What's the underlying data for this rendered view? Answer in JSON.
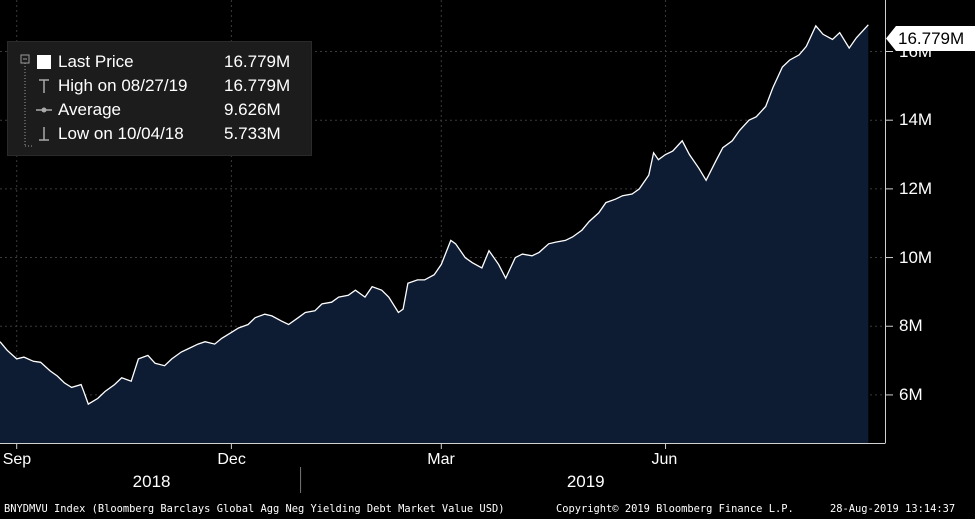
{
  "chart_data": {
    "type": "area",
    "title": "",
    "xlabel": "",
    "ylabel": "",
    "series": [
      {
        "points": [
          [
            "2018-08-28",
            7.55
          ],
          [
            "2018-08-31",
            7.3
          ],
          [
            "2018-09-04",
            7.05
          ],
          [
            "2018-09-07",
            7.1
          ],
          [
            "2018-09-11",
            6.98
          ],
          [
            "2018-09-14",
            6.95
          ],
          [
            "2018-09-18",
            6.7
          ],
          [
            "2018-09-21",
            6.55
          ],
          [
            "2018-09-24",
            6.35
          ],
          [
            "2018-09-27",
            6.22
          ],
          [
            "2018-10-01",
            6.3
          ],
          [
            "2018-10-02",
            6.12
          ],
          [
            "2018-10-04",
            5.733
          ],
          [
            "2018-10-08",
            5.9
          ],
          [
            "2018-10-11",
            6.1
          ],
          [
            "2018-10-15",
            6.3
          ],
          [
            "2018-10-18",
            6.5
          ],
          [
            "2018-10-22",
            6.4
          ],
          [
            "2018-10-25",
            7.05
          ],
          [
            "2018-10-29",
            7.15
          ],
          [
            "2018-11-01",
            6.92
          ],
          [
            "2018-11-05",
            6.85
          ],
          [
            "2018-11-08",
            7.05
          ],
          [
            "2018-11-12",
            7.25
          ],
          [
            "2018-11-15",
            7.35
          ],
          [
            "2018-11-19",
            7.48
          ],
          [
            "2018-11-22",
            7.55
          ],
          [
            "2018-11-26",
            7.48
          ],
          [
            "2018-11-29",
            7.65
          ],
          [
            "2018-12-03",
            7.82
          ],
          [
            "2018-12-06",
            7.95
          ],
          [
            "2018-12-10",
            8.05
          ],
          [
            "2018-12-13",
            8.25
          ],
          [
            "2018-12-17",
            8.35
          ],
          [
            "2018-12-20",
            8.3
          ],
          [
            "2018-12-24",
            8.15
          ],
          [
            "2018-12-27",
            8.05
          ],
          [
            "2018-12-31",
            8.25
          ],
          [
            "2019-01-03",
            8.4
          ],
          [
            "2019-01-07",
            8.45
          ],
          [
            "2019-01-10",
            8.65
          ],
          [
            "2019-01-14",
            8.7
          ],
          [
            "2019-01-17",
            8.85
          ],
          [
            "2019-01-21",
            8.9
          ],
          [
            "2019-01-24",
            9.05
          ],
          [
            "2019-01-28",
            8.85
          ],
          [
            "2019-01-31",
            9.15
          ],
          [
            "2019-02-04",
            9.05
          ],
          [
            "2019-02-07",
            8.85
          ],
          [
            "2019-02-11",
            8.4
          ],
          [
            "2019-02-13",
            8.5
          ],
          [
            "2019-02-15",
            9.25
          ],
          [
            "2019-02-19",
            9.35
          ],
          [
            "2019-02-22",
            9.35
          ],
          [
            "2019-02-26",
            9.5
          ],
          [
            "2019-03-01",
            9.8
          ],
          [
            "2019-03-05",
            10.5
          ],
          [
            "2019-03-07",
            10.4
          ],
          [
            "2019-03-11",
            10.0
          ],
          [
            "2019-03-14",
            9.85
          ],
          [
            "2019-03-18",
            9.7
          ],
          [
            "2019-03-21",
            10.2
          ],
          [
            "2019-03-25",
            9.8
          ],
          [
            "2019-03-28",
            9.4
          ],
          [
            "2019-04-01",
            10.0
          ],
          [
            "2019-04-04",
            10.1
          ],
          [
            "2019-04-08",
            10.05
          ],
          [
            "2019-04-11",
            10.15
          ],
          [
            "2019-04-15",
            10.4
          ],
          [
            "2019-04-18",
            10.45
          ],
          [
            "2019-04-22",
            10.5
          ],
          [
            "2019-04-25",
            10.6
          ],
          [
            "2019-04-29",
            10.8
          ],
          [
            "2019-05-02",
            11.05
          ],
          [
            "2019-05-06",
            11.3
          ],
          [
            "2019-05-09",
            11.6
          ],
          [
            "2019-05-13",
            11.7
          ],
          [
            "2019-05-16",
            11.8
          ],
          [
            "2019-05-20",
            11.85
          ],
          [
            "2019-05-23",
            12.0
          ],
          [
            "2019-05-27",
            12.4
          ],
          [
            "2019-05-29",
            13.05
          ],
          [
            "2019-05-31",
            12.85
          ],
          [
            "2019-06-03",
            13.0
          ],
          [
            "2019-06-06",
            13.1
          ],
          [
            "2019-06-10",
            13.4
          ],
          [
            "2019-06-13",
            13.0
          ],
          [
            "2019-06-17",
            12.6
          ],
          [
            "2019-06-20",
            12.25
          ],
          [
            "2019-06-24",
            12.8
          ],
          [
            "2019-06-27",
            13.2
          ],
          [
            "2019-07-01",
            13.4
          ],
          [
            "2019-07-04",
            13.7
          ],
          [
            "2019-07-08",
            14.0
          ],
          [
            "2019-07-11",
            14.1
          ],
          [
            "2019-07-15",
            14.4
          ],
          [
            "2019-07-18",
            14.95
          ],
          [
            "2019-07-22",
            15.55
          ],
          [
            "2019-07-25",
            15.75
          ],
          [
            "2019-07-29",
            15.9
          ],
          [
            "2019-08-01",
            16.15
          ],
          [
            "2019-08-05",
            16.75
          ],
          [
            "2019-08-08",
            16.5
          ],
          [
            "2019-08-12",
            16.35
          ],
          [
            "2019-08-15",
            16.55
          ],
          [
            "2019-08-19",
            16.1
          ],
          [
            "2019-08-22",
            16.4
          ],
          [
            "2019-08-27",
            16.779
          ]
        ]
      }
    ],
    "x_ticks": [
      {
        "date": "2018-09-04",
        "label": "Sep"
      },
      {
        "date": "2018-12-03",
        "label": "Dec"
      },
      {
        "date": "2019-03-01",
        "label": "Mar"
      },
      {
        "date": "2019-06-03",
        "label": "Jun"
      }
    ],
    "x_year_labels": [
      {
        "label": "2018",
        "center": "2018-10-31"
      },
      {
        "label": "2019",
        "center": "2019-05-01"
      }
    ],
    "year_boundary": "2019-01-01",
    "y_ticks": [
      6,
      8,
      10,
      12,
      14,
      16
    ],
    "y_tick_labels": [
      "6M",
      "8M",
      "10M",
      "12M",
      "14M",
      "16M"
    ],
    "ylim": [
      4.6,
      17.5
    ],
    "xlim": [
      "2018-08-28",
      "2019-09-03"
    ],
    "grid": true,
    "legend_position": "top-left",
    "colors": {
      "fill": "#0d1b33",
      "line": "#ffffff",
      "grid": "#3a3a3a",
      "background": "#000000",
      "last_box": "#ffffff"
    }
  },
  "legend": {
    "items": [
      {
        "label": "Last Price",
        "value": "16.779M",
        "icon": "white-square-icon"
      },
      {
        "label": "High on 08/27/19",
        "value": "16.779M",
        "icon": "high-marker-icon"
      },
      {
        "label": "Average",
        "value": "9.626M",
        "icon": "average-marker-icon"
      },
      {
        "label": "Low on 10/04/18",
        "value": "5.733M",
        "icon": "low-marker-icon"
      }
    ]
  },
  "last_price_label": "16.779M",
  "footer": {
    "index": "BNYDMVU Index (Bloomberg Barclays Global Agg Neg Yielding Debt Market Value USD)",
    "copyright": "Copyright© 2019 Bloomberg Finance L.P.",
    "timestamp": "28-Aug-2019 13:14:37"
  }
}
